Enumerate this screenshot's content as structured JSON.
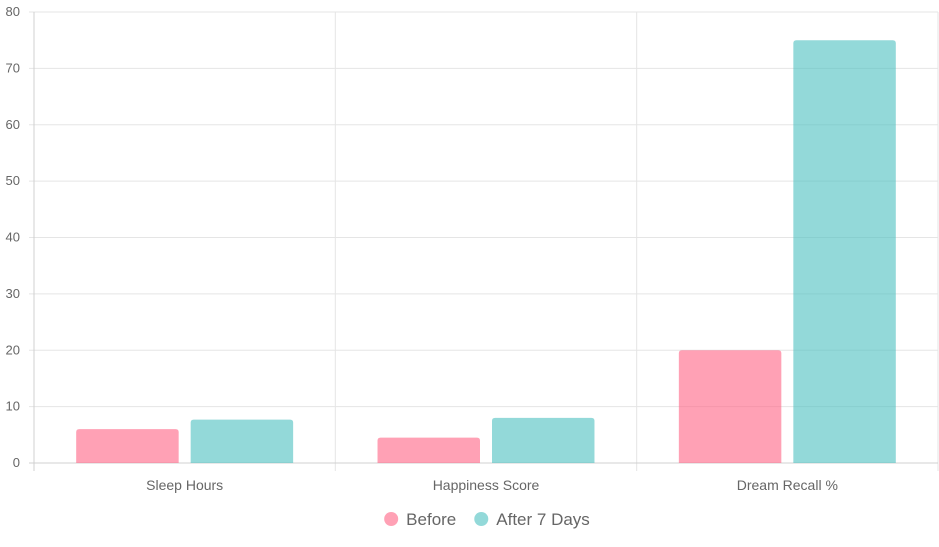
{
  "chart_data": {
    "type": "bar",
    "categories": [
      "Sleep Hours",
      "Happiness Score",
      "Dream Recall %"
    ],
    "series": [
      {
        "name": "Before",
        "values": [
          6,
          4.5,
          20
        ],
        "color": "#ff6384"
      },
      {
        "name": "After 7 Days",
        "values": [
          7.7,
          8,
          75
        ],
        "color": "#4bc0c0"
      }
    ],
    "ylim": [
      0,
      80
    ],
    "yticks": [
      "0",
      "10",
      "20",
      "30",
      "40",
      "50",
      "60",
      "70",
      "80"
    ],
    "grid": true,
    "legend_position": "bottom"
  }
}
